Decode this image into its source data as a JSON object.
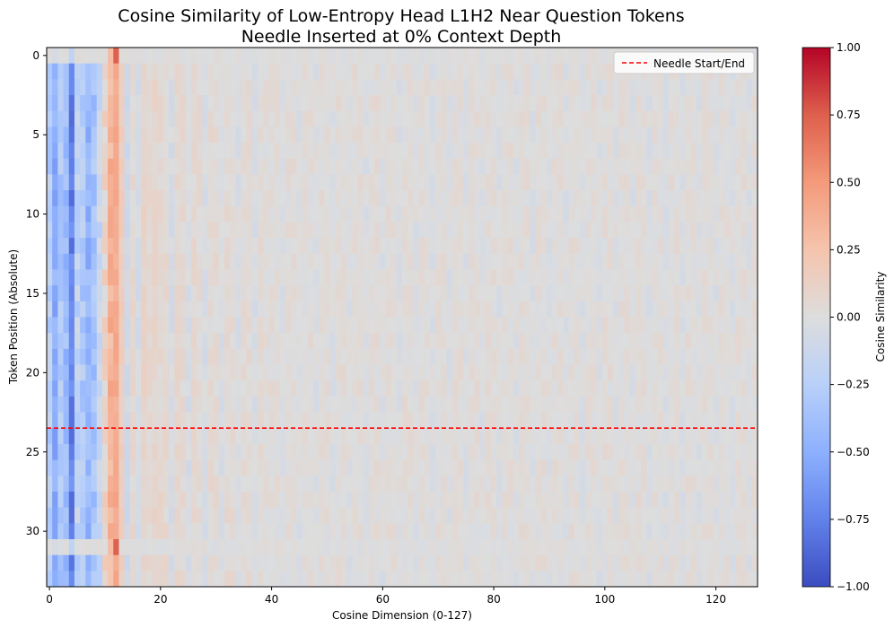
{
  "chart_data": {
    "type": "heatmap",
    "title": "Cosine Similarity of Low-Entropy Head L1H2 Near Question Tokens",
    "subtitle": "Needle Inserted at 0% Context Depth",
    "xlabel": "Cosine Dimension (0-127)",
    "ylabel": "Token Position (Absolute)",
    "xlim": [
      -0.5,
      127.5
    ],
    "ylim": [
      33.5,
      -0.5
    ],
    "x_ticks": [
      0,
      20,
      40,
      60,
      80,
      100,
      120
    ],
    "y_ticks": [
      0,
      5,
      10,
      15,
      20,
      25,
      30
    ],
    "n_rows": 34,
    "n_cols": 128,
    "colormap": "coolwarm",
    "vmin": -1.0,
    "vmax": 1.0,
    "colorbar": {
      "label": "Cosine Similarity",
      "ticks": [
        -1.0,
        -0.75,
        -0.5,
        -0.25,
        0.0,
        0.25,
        0.5,
        0.75,
        1.0
      ],
      "tick_labels": [
        "−1.00",
        "−0.75",
        "−0.50",
        "−0.25",
        "0.00",
        "0.25",
        "0.50",
        "0.75",
        "1.00"
      ]
    },
    "column_profile": [
      -0.25,
      -0.5,
      -0.3,
      -0.4,
      -0.75,
      -0.2,
      -0.3,
      -0.45,
      -0.35,
      -0.15,
      0.1,
      0.35,
      0.4,
      0.15,
      -0.1,
      0.05,
      -0.05,
      0.1,
      0.05,
      0.08,
      0.06,
      0.05,
      -0.05,
      0.06,
      0.05,
      -0.04,
      0.05,
      0.04,
      -0.04,
      0.04,
      0.04,
      -0.03,
      0.04,
      0.03,
      -0.03,
      0.03,
      0.04,
      -0.03,
      0.03,
      0.02
    ],
    "tail_level": 0.02,
    "special_rows": [
      0,
      31
    ],
    "special_row_values": {
      "12": 0.75,
      "11": 0.3,
      "4": -0.2,
      "1": -0.05
    },
    "hlines": [
      {
        "y": 23.5,
        "label": "Needle Start/End",
        "color": "#ff0000",
        "style": "dashed"
      }
    ],
    "legend": {
      "entries": [
        "Needle Start/End"
      ],
      "position": "upper right"
    }
  }
}
